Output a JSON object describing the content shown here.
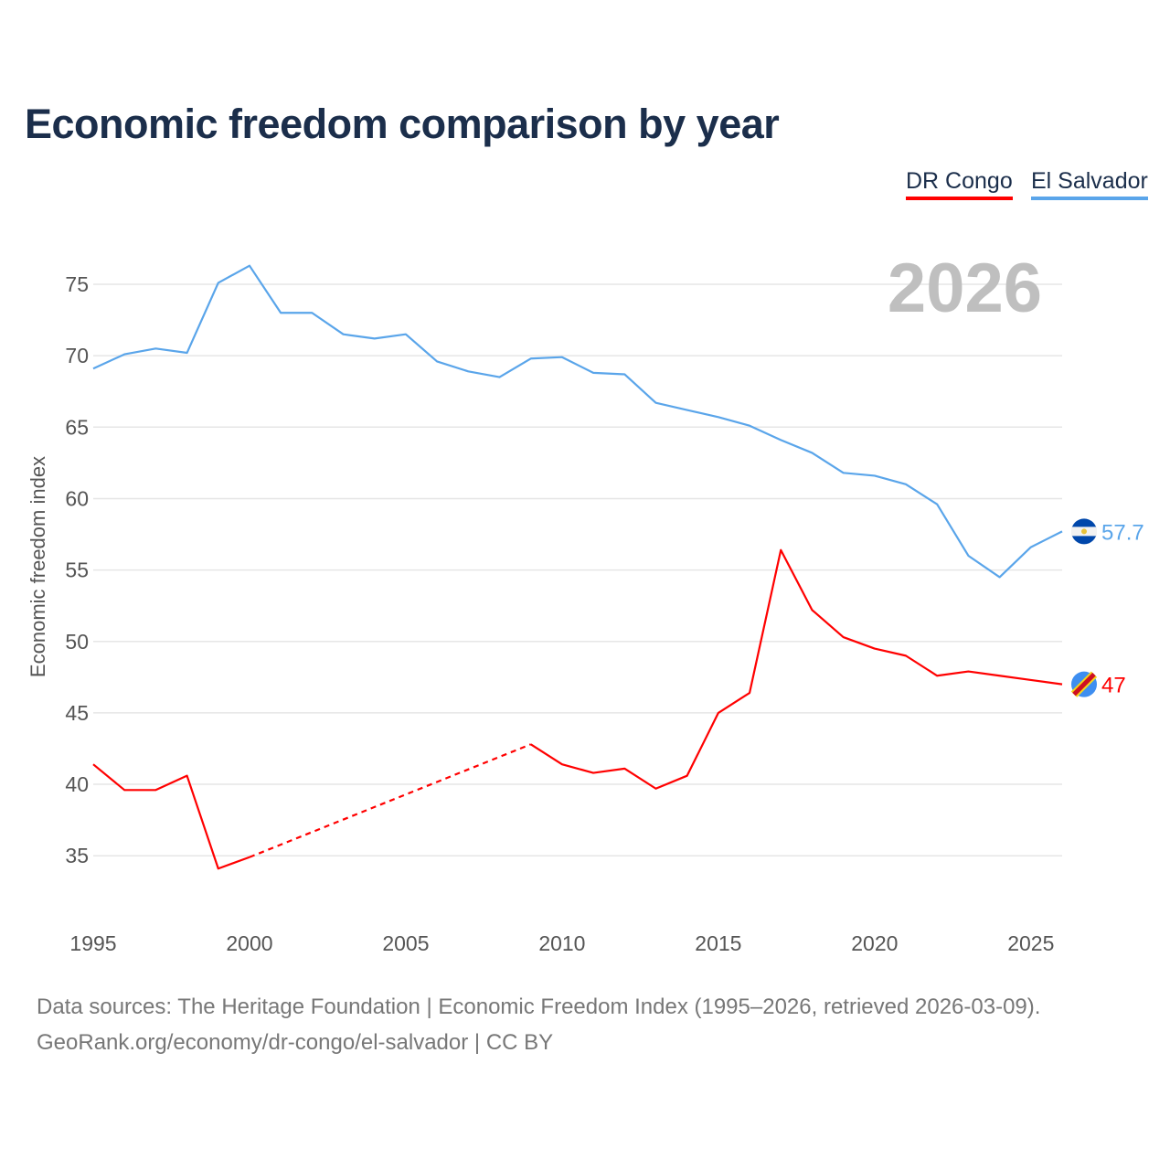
{
  "chart_data": {
    "type": "line",
    "title": "Economic freedom comparison by year",
    "ylabel": "Economic freedom index",
    "xlabel": "",
    "current_year_label": "2026",
    "ylim": [
      31,
      77
    ],
    "xlim": [
      1995,
      2026
    ],
    "yticks": [
      35,
      40,
      45,
      50,
      55,
      60,
      65,
      70,
      75
    ],
    "xticks": [
      1995,
      2000,
      2005,
      2010,
      2015,
      2020,
      2025
    ],
    "x": [
      1995,
      1996,
      1997,
      1998,
      1999,
      2000,
      2001,
      2002,
      2003,
      2004,
      2005,
      2006,
      2007,
      2008,
      2009,
      2010,
      2011,
      2012,
      2013,
      2014,
      2015,
      2016,
      2017,
      2018,
      2019,
      2020,
      2021,
      2022,
      2023,
      2024,
      2025,
      2026
    ],
    "series": [
      {
        "name": "DR Congo",
        "color": "#ff0000",
        "end_label": "47",
        "flag": "dr-congo-flag-icon",
        "values": [
          41.4,
          39.6,
          39.6,
          40.6,
          34.1,
          34.9,
          null,
          null,
          null,
          null,
          null,
          null,
          null,
          null,
          42.8,
          41.4,
          40.8,
          41.1,
          39.7,
          40.6,
          45.0,
          46.4,
          56.4,
          52.2,
          50.3,
          49.5,
          49.0,
          47.6,
          47.9,
          47.6,
          47.3,
          47.0
        ]
      },
      {
        "name": "El Salvador",
        "color": "#5aa5ea",
        "end_label": "57.7",
        "flag": "el-salvador-flag-icon",
        "values": [
          69.1,
          70.1,
          70.5,
          70.2,
          75.1,
          76.3,
          73.0,
          73.0,
          71.5,
          71.2,
          71.5,
          69.6,
          68.9,
          68.5,
          69.8,
          69.9,
          68.8,
          68.7,
          66.7,
          66.2,
          65.7,
          65.1,
          64.1,
          63.2,
          61.8,
          61.6,
          61.0,
          59.6,
          56.0,
          54.5,
          56.6,
          57.7
        ]
      }
    ],
    "legend_position": "top-right",
    "grid": true
  },
  "footer": {
    "sources": "Data sources: The Heritage Foundation | Economic Freedom Index (1995–2026, retrieved 2026-03-09).",
    "credit": "GeoRank.org/economy/dr-congo/el-salvador | CC BY"
  }
}
